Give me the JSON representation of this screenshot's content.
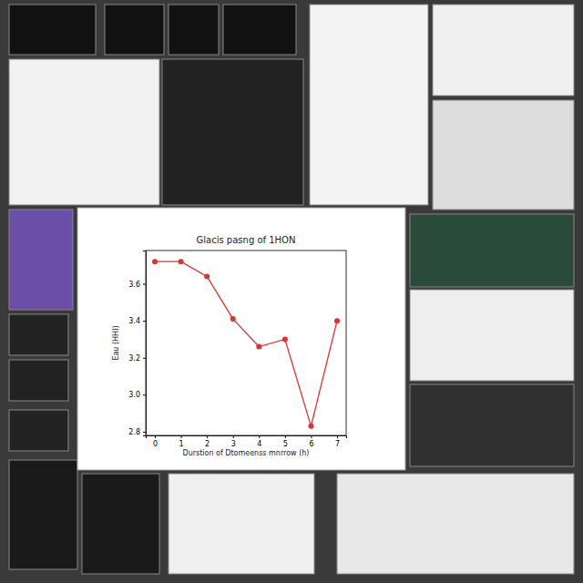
{
  "chart_data": {
    "type": "line",
    "title": "Glacis pasng of 1HON",
    "x_label": "Durstion of Dtomeenss mnrrow (h)",
    "y_label": "Eau (HHI)",
    "x": [
      0,
      1,
      2,
      3,
      4,
      5,
      6,
      7
    ],
    "values": [
      3.72,
      3.72,
      3.64,
      3.41,
      3.26,
      3.3,
      2.83,
      3.4
    ],
    "color": "#e03030",
    "marker": "circle",
    "xlim": [
      -0.35,
      7.35
    ],
    "ylim": [
      2.78,
      3.78
    ],
    "xticks": [
      0,
      1,
      2,
      3,
      4,
      5,
      6,
      7
    ],
    "yticks": [
      2.8,
      {
        "value": 3,
        "label": "3.0"
      },
      3.2,
      3.4,
      3.6
    ],
    "grid": false
  }
}
